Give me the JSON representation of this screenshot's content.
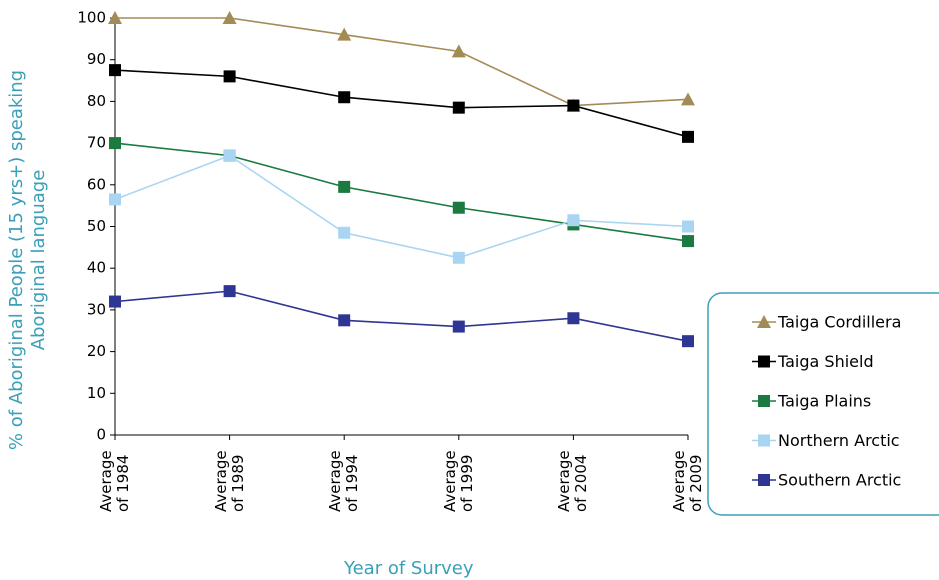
{
  "chart_data": {
    "type": "line",
    "y_label": "% of Aboriginal People (15 yrs+) speaking Aboriginal language",
    "x_label": "Year of Survey",
    "categories": [
      "Average of 1984",
      "Average of 1989",
      "Average of 1994",
      "Average of 1999",
      "Average of 2004",
      "Average of 2009"
    ],
    "series": [
      {
        "name": "Taiga Cordillera",
        "color": "#a38b55",
        "marker": "triangle",
        "values": [
          100,
          100,
          96,
          92,
          79,
          80.5
        ]
      },
      {
        "name": "Taiga Shield",
        "color": "#000000",
        "marker": "square",
        "values": [
          87.5,
          86,
          81,
          78.5,
          79,
          71.5
        ]
      },
      {
        "name": "Taiga Plains",
        "color": "#1b7a40",
        "marker": "square",
        "values": [
          70,
          67,
          59.5,
          54.5,
          50.5,
          46.5
        ]
      },
      {
        "name": "Northern Arctic",
        "color": "#a9d5f2",
        "marker": "square",
        "values": [
          56.5,
          67,
          48.5,
          42.5,
          51.5,
          50
        ]
      },
      {
        "name": "Southern Arctic",
        "color": "#2e3592",
        "marker": "square",
        "values": [
          32,
          34.5,
          27.5,
          26,
          28,
          22.5
        ]
      }
    ],
    "ylim": [
      0,
      100
    ],
    "yticks": [
      0,
      10,
      20,
      30,
      40,
      50,
      60,
      70,
      80,
      90,
      100
    ],
    "legend": "right",
    "legend_border_color": "#3aa0b8"
  }
}
